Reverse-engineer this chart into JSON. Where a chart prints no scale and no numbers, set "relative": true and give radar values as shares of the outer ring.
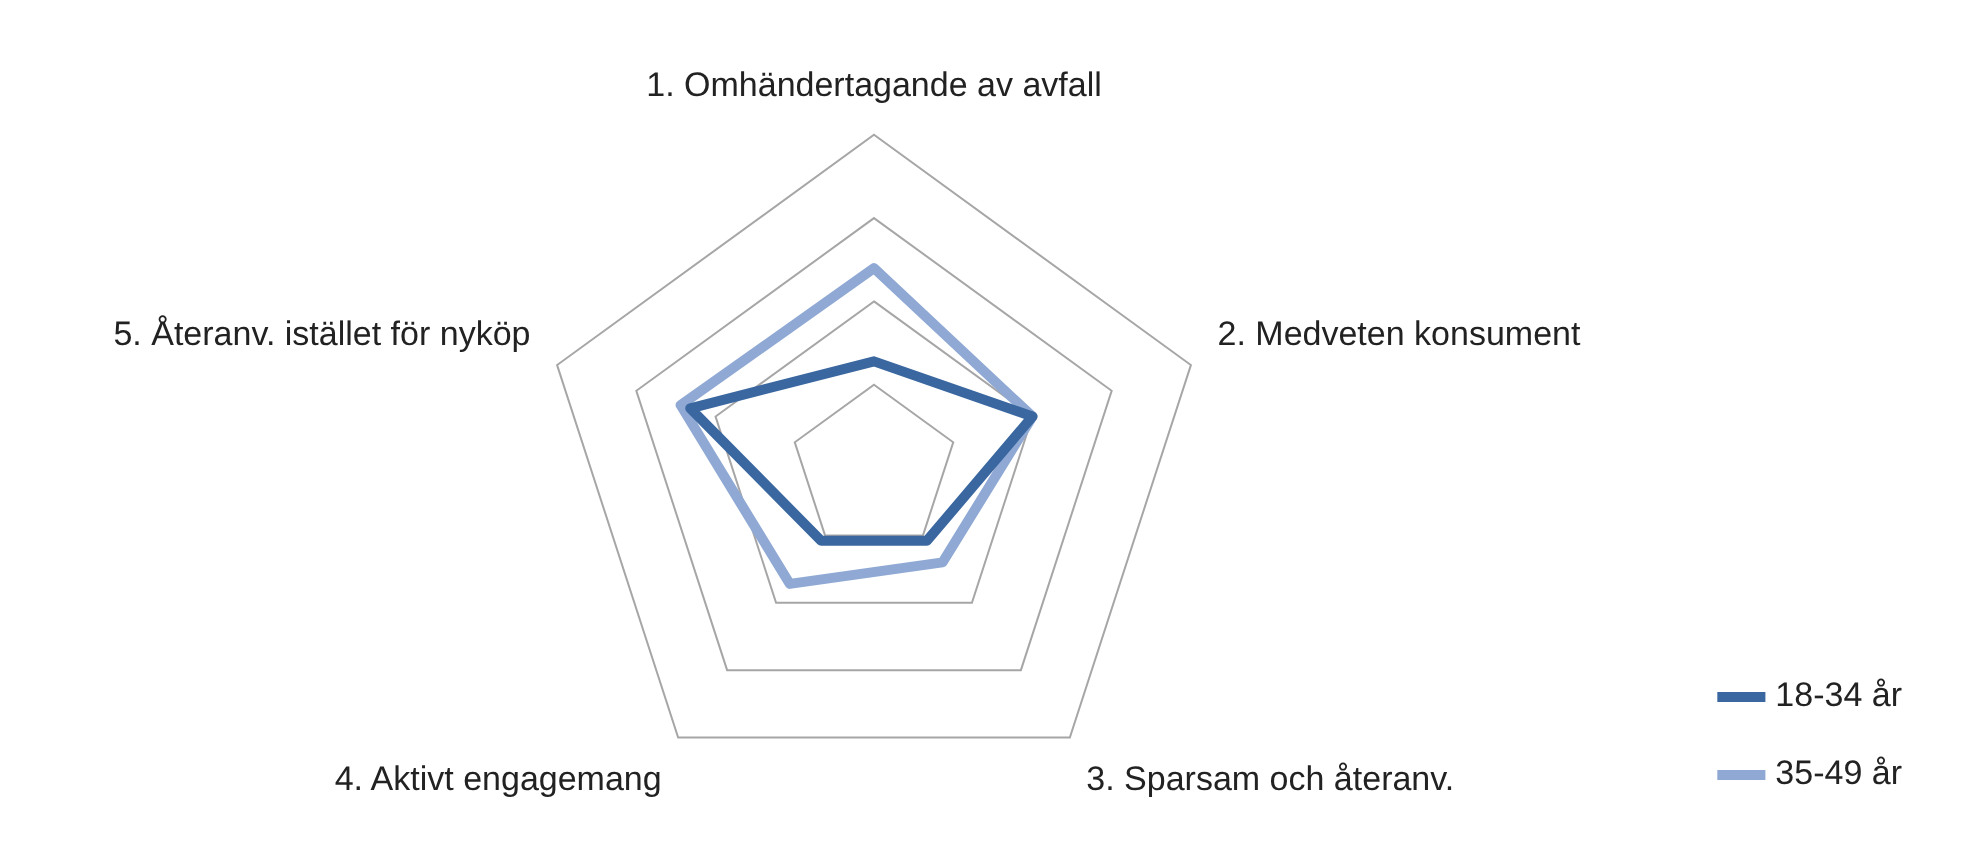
{
  "chart_data": {
    "type": "radar",
    "relative": true,
    "categories": [
      "1. Omhändertagande av avfall",
      "2. Medveten konsument",
      "3. Sparsam och återanv.",
      "4. Aktivt engagemang",
      "5. Återanv. istället för nyköp"
    ],
    "series": [
      {
        "name": "18-34 år",
        "color": "#3a67a0",
        "values": [
          0.32,
          0.5,
          0.27,
          0.27,
          0.58
        ]
      },
      {
        "name": "35-49 år",
        "color": "#8fa9d4",
        "values": [
          0.6,
          0.5,
          0.35,
          0.43,
          0.61
        ]
      }
    ],
    "grid": true,
    "legend": "bottom right",
    "marker": "none"
  }
}
